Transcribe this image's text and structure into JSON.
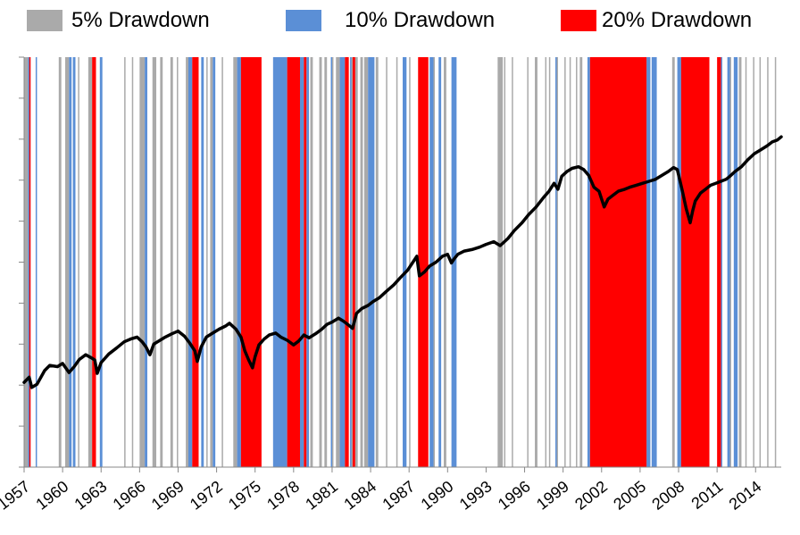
{
  "chart_data": {
    "type": "line",
    "title": "",
    "xlabel": "",
    "ylabel": "",
    "xlim": [
      1957,
      2016
    ],
    "x_tick_labels": [
      "1957",
      "1960",
      "1963",
      "1966",
      "1969",
      "1972",
      "1975",
      "1978",
      "1981",
      "1984",
      "1987",
      "1990",
      "1993",
      "1996",
      "1999",
      "2002",
      "2005",
      "2008",
      "2011",
      "2014"
    ],
    "x_ticks": [
      1957,
      1960,
      1963,
      1966,
      1969,
      1972,
      1975,
      1978,
      1981,
      1984,
      1987,
      1990,
      1993,
      1996,
      1999,
      2002,
      2005,
      2008,
      2011,
      2014
    ],
    "y_tick_count": 10,
    "y_tick_labels_shown": false,
    "legend": {
      "placement": "top",
      "items": [
        {
          "label": "5% Drawdown",
          "color": "#aaaaaa"
        },
        {
          "label": "10% Drawdown",
          "color": "#5b8fd6"
        },
        {
          "label": "20% Drawdown",
          "color": "#ff0000"
        }
      ]
    },
    "colors": {
      "line": "#000000",
      "gray": "#aaaaaa",
      "blue": "#5b8fd6",
      "red": "#ff0000",
      "axis": "#888888"
    },
    "drawdown_bands": {
      "5pct": [
        [
          1957.0,
          1957.3
        ],
        [
          1959.7,
          1959.9
        ],
        [
          1960.2,
          1960.5
        ],
        [
          1961.2,
          1961.3
        ],
        [
          1962.0,
          1962.3
        ],
        [
          1964.8,
          1964.9
        ],
        [
          1965.4,
          1965.5
        ],
        [
          1966.0,
          1966.4
        ],
        [
          1967.0,
          1967.3
        ],
        [
          1967.6,
          1967.8
        ],
        [
          1968.4,
          1968.6
        ],
        [
          1968.9,
          1969.0
        ],
        [
          1969.6,
          1969.8
        ],
        [
          1971.2,
          1971.3
        ],
        [
          1971.5,
          1971.7
        ],
        [
          1972.4,
          1972.5
        ],
        [
          1973.3,
          1973.6
        ],
        [
          1977.9,
          1978.0
        ],
        [
          1979.3,
          1979.5
        ],
        [
          1980.0,
          1980.2
        ],
        [
          1980.4,
          1980.6
        ],
        [
          1981.0,
          1981.1
        ],
        [
          1981.3,
          1981.6
        ],
        [
          1982.5,
          1982.6
        ],
        [
          1982.8,
          1983.0
        ],
        [
          1983.2,
          1983.4
        ],
        [
          1983.5,
          1983.8
        ],
        [
          1984.4,
          1984.6
        ],
        [
          1985.2,
          1985.3
        ],
        [
          1986.0,
          1986.1
        ],
        [
          1987.0,
          1987.1
        ],
        [
          1988.9,
          1989.0
        ],
        [
          1989.7,
          1989.9
        ],
        [
          1993.9,
          1994.3
        ],
        [
          1994.4,
          1994.5
        ],
        [
          1995.0,
          1995.1
        ],
        [
          1996.2,
          1996.3
        ],
        [
          1996.8,
          1997.0
        ],
        [
          1997.6,
          1997.7
        ],
        [
          1997.9,
          1998.0
        ],
        [
          1998.5,
          1998.6
        ],
        [
          1999.1,
          1999.2
        ],
        [
          1999.5,
          1999.6
        ],
        [
          2000.0,
          2000.1
        ],
        [
          2000.3,
          2000.5
        ],
        [
          2007.5,
          2007.7
        ],
        [
          2011.9,
          2012.1
        ],
        [
          2012.7,
          2012.9
        ],
        [
          2013.2,
          2013.3
        ],
        [
          2013.8,
          2013.9
        ],
        [
          2014.3,
          2014.4
        ],
        [
          2014.9,
          2015.0
        ],
        [
          2015.5,
          2015.6
        ]
      ],
      "10pct": [
        [
          1957.3,
          1957.5
        ],
        [
          1957.9,
          1958.0
        ],
        [
          1960.5,
          1960.7
        ],
        [
          1960.8,
          1961.0
        ],
        [
          1962.9,
          1963.1
        ],
        [
          1966.4,
          1966.6
        ],
        [
          1969.8,
          1970.1
        ],
        [
          1970.8,
          1971.0
        ],
        [
          1971.7,
          1971.9
        ],
        [
          1973.6,
          1973.9
        ],
        [
          1976.4,
          1977.5
        ],
        [
          1978.5,
          1978.8
        ],
        [
          1979.0,
          1979.2
        ],
        [
          1980.9,
          1981.0
        ],
        [
          1981.6,
          1982.0
        ],
        [
          1982.4,
          1982.5
        ],
        [
          1983.8,
          1984.3
        ],
        [
          1986.5,
          1986.8
        ],
        [
          1988.1,
          1988.2
        ],
        [
          1988.6,
          1988.9
        ],
        [
          1989.3,
          1989.5
        ],
        [
          1990.3,
          1990.7
        ],
        [
          1998.4,
          1998.5
        ],
        [
          2000.9,
          2001.1
        ],
        [
          2005.5,
          2005.8
        ],
        [
          2005.9,
          2006.3
        ],
        [
          2007.9,
          2008.2
        ],
        [
          2011.3,
          2011.4
        ],
        [
          2011.8,
          2012.0
        ],
        [
          2012.3,
          2012.6
        ]
      ],
      "20pct": [
        [
          1957.4,
          1957.5
        ],
        [
          1962.3,
          1962.6
        ],
        [
          1970.1,
          1970.6
        ],
        [
          1973.9,
          1975.5
        ],
        [
          1977.5,
          1978.5
        ],
        [
          1978.8,
          1979.0
        ],
        [
          1982.0,
          1982.3
        ],
        [
          1982.6,
          1982.8
        ],
        [
          1987.7,
          1988.5
        ],
        [
          2001.1,
          2005.5
        ],
        [
          2008.2,
          2010.4
        ],
        [
          2011.0,
          2011.3
        ]
      ]
    },
    "series": [
      {
        "x": [
          1957.0,
          1957.4,
          1957.6,
          1958.0,
          1958.6,
          1959.0,
          1959.6,
          1960.0,
          1960.5,
          1960.9,
          1961.3,
          1961.8,
          1962.2,
          1962.5,
          1962.7,
          1963.0,
          1963.6,
          1964.2,
          1964.8,
          1965.3,
          1965.8,
          1966.2,
          1966.5,
          1966.8,
          1967.1,
          1967.6,
          1968.0,
          1968.5,
          1969.0,
          1969.5,
          1969.9,
          1970.3,
          1970.5,
          1970.8,
          1971.2,
          1971.7,
          1972.2,
          1972.7,
          1973.0,
          1973.5,
          1973.9,
          1974.2,
          1974.5,
          1974.8,
          1975.0,
          1975.3,
          1975.7,
          1976.1,
          1976.6,
          1977.0,
          1977.5,
          1978.0,
          1978.4,
          1978.8,
          1979.2,
          1979.7,
          1980.2,
          1980.6,
          1981.0,
          1981.5,
          1981.9,
          1982.3,
          1982.6,
          1982.9,
          1983.3,
          1983.8,
          1984.2,
          1984.7,
          1985.2,
          1985.8,
          1986.3,
          1986.9,
          1987.3,
          1987.6,
          1987.8,
          1988.2,
          1988.6,
          1989.1,
          1989.6,
          1990.0,
          1990.3,
          1990.5,
          1990.8,
          1991.3,
          1991.9,
          1992.5,
          1993.0,
          1993.6,
          1994.1,
          1994.7,
          1995.2,
          1995.8,
          1996.3,
          1996.9,
          1997.5,
          1997.9,
          1998.3,
          1998.6,
          1998.9,
          1999.3,
          1999.7,
          2000.2,
          2000.6,
          2001.0,
          2001.4,
          2001.8,
          2002.2,
          2002.5,
          2002.9,
          2003.3,
          2003.8,
          2004.2,
          2004.7,
          2005.2,
          2005.7,
          2006.2,
          2006.7,
          2007.2,
          2007.6,
          2007.9,
          2008.3,
          2008.6,
          2008.9,
          2009.1,
          2009.3,
          2009.7,
          2010.1,
          2010.5,
          2010.9,
          2011.3,
          2011.7,
          2012.0,
          2012.4,
          2012.9,
          2013.4,
          2013.9,
          2014.4,
          2014.9,
          2015.3,
          2015.7,
          2016.0
        ],
        "y": [
          2.15,
          2.28,
          2.02,
          2.1,
          2.45,
          2.58,
          2.55,
          2.63,
          2.4,
          2.55,
          2.73,
          2.85,
          2.78,
          2.72,
          2.38,
          2.65,
          2.87,
          3.02,
          3.18,
          3.25,
          3.3,
          3.18,
          3.05,
          2.85,
          3.12,
          3.22,
          3.3,
          3.38,
          3.45,
          3.32,
          3.15,
          2.95,
          2.68,
          3.05,
          3.3,
          3.4,
          3.5,
          3.58,
          3.65,
          3.5,
          3.3,
          2.95,
          2.72,
          2.52,
          2.8,
          3.1,
          3.25,
          3.35,
          3.4,
          3.3,
          3.22,
          3.1,
          3.2,
          3.35,
          3.28,
          3.38,
          3.5,
          3.62,
          3.68,
          3.78,
          3.7,
          3.6,
          3.52,
          3.9,
          4.02,
          4.1,
          4.2,
          4.3,
          4.45,
          4.62,
          4.8,
          5.0,
          5.2,
          5.35,
          4.85,
          4.95,
          5.1,
          5.2,
          5.35,
          5.4,
          5.18,
          5.28,
          5.4,
          5.48,
          5.52,
          5.58,
          5.65,
          5.72,
          5.62,
          5.8,
          6.0,
          6.2,
          6.4,
          6.6,
          6.85,
          7.0,
          7.2,
          7.05,
          7.38,
          7.5,
          7.58,
          7.62,
          7.55,
          7.4,
          7.1,
          7.0,
          6.6,
          6.8,
          6.9,
          7.0,
          7.05,
          7.1,
          7.15,
          7.2,
          7.25,
          7.3,
          7.4,
          7.5,
          7.6,
          7.55,
          7.0,
          6.55,
          6.2,
          6.5,
          6.75,
          6.95,
          7.05,
          7.15,
          7.2,
          7.25,
          7.3,
          7.38,
          7.5,
          7.62,
          7.8,
          7.95,
          8.05,
          8.15,
          8.25,
          8.3,
          8.38
        ],
        "ylim": [
          0,
          10.4
        ]
      }
    ]
  }
}
